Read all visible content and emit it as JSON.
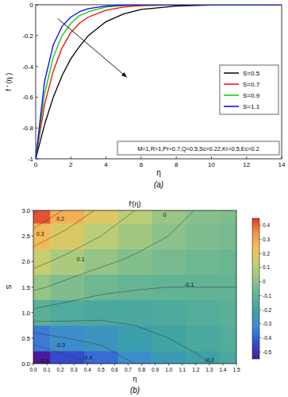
{
  "chart_data": [
    {
      "type": "line",
      "caption": "(a)",
      "xlabel": "η",
      "ylabel": "f ' (η )",
      "annotation": "M=1,R=1,Pr=0.7,Q=0.5,Sc=0.22,Kr=0.5,Ec=0.2",
      "x": [
        0,
        0.5,
        1,
        1.5,
        2,
        2.5,
        3,
        4,
        5,
        6,
        8,
        10,
        12,
        14
      ],
      "series": [
        {
          "name": "S=0.5",
          "color": "#000000",
          "values": [
            -1,
            -0.78,
            -0.6,
            -0.46,
            -0.35,
            -0.27,
            -0.2,
            -0.11,
            -0.06,
            -0.03,
            -0.008,
            -0.002,
            0,
            0
          ]
        },
        {
          "name": "S=0.7",
          "color": "#ff0000",
          "values": [
            -1,
            -0.65,
            -0.43,
            -0.28,
            -0.18,
            -0.12,
            -0.08,
            -0.035,
            -0.015,
            -0.006,
            -0.001,
            0,
            0,
            0
          ]
        },
        {
          "name": "S=0.9",
          "color": "#00cc00",
          "values": [
            -1,
            -0.58,
            -0.34,
            -0.2,
            -0.12,
            -0.07,
            -0.045,
            -0.015,
            -0.005,
            -0.002,
            0,
            0,
            0,
            0
          ]
        },
        {
          "name": "S=1.1",
          "color": "#0000ff",
          "values": [
            -1,
            -0.5,
            -0.26,
            -0.14,
            -0.08,
            -0.045,
            -0.025,
            -0.008,
            -0.003,
            0,
            0,
            0,
            0,
            0
          ]
        }
      ],
      "xlim": [
        0,
        14
      ],
      "ylim": [
        -1,
        0
      ],
      "xticks": [
        0,
        2,
        4,
        6,
        8,
        10,
        12,
        14
      ],
      "yticks": [
        -1,
        -0.8,
        -0.6,
        -0.4,
        -0.2,
        0
      ],
      "legend": "right",
      "grid": false
    },
    {
      "type": "contour",
      "caption": "(b)",
      "title": "f'(η)",
      "xlabel": "η",
      "ylabel": "S",
      "x": [
        0,
        0.25,
        0.5,
        0.75,
        1.0,
        1.25,
        1.5
      ],
      "y": [
        0,
        0.5,
        1.0,
        1.5,
        2.0,
        2.5,
        3.0
      ],
      "cells": [
        [
          -0.55,
          -0.45,
          -0.38,
          -0.3,
          -0.25,
          -0.21,
          -0.17
        ],
        [
          -0.35,
          -0.3,
          -0.27,
          -0.23,
          -0.2,
          -0.17,
          -0.14
        ],
        [
          -0.12,
          -0.15,
          -0.17,
          -0.17,
          -0.16,
          -0.14,
          -0.12
        ],
        [
          0.02,
          -0.03,
          -0.07,
          -0.09,
          -0.1,
          -0.1,
          -0.1
        ],
        [
          0.13,
          0.07,
          0.02,
          -0.02,
          -0.05,
          -0.07,
          -0.08
        ],
        [
          0.25,
          0.17,
          0.1,
          0.05,
          0.0,
          -0.03,
          -0.05
        ],
        [
          0.42,
          0.28,
          0.18,
          0.1,
          0.03,
          -0.01,
          -0.03
        ]
      ],
      "contour_labels": [
        {
          "x": 0.2,
          "y": 2.85,
          "value": 0.2
        },
        {
          "x": 0.05,
          "y": 2.55,
          "value": 0.3
        },
        {
          "x": 0.35,
          "y": 2.05,
          "value": 0.1
        },
        {
          "x": 0.97,
          "y": 2.92,
          "value": 0
        },
        {
          "x": 1.15,
          "y": 1.55,
          "value": -0.1
        },
        {
          "x": 0.2,
          "y": 0.38,
          "value": -0.3
        },
        {
          "x": 0.4,
          "y": 0.12,
          "value": -0.4
        },
        {
          "x": 0.08,
          "y": 0.06,
          "value": -0.5
        },
        {
          "x": 1.3,
          "y": 0.07,
          "value": -0.2
        }
      ],
      "xlim": [
        0,
        1.5
      ],
      "ylim": [
        0,
        3.0
      ],
      "xticks": [
        {
          "value": 0,
          "label": "0.0"
        },
        {
          "value": 0.1,
          "label": "0.1"
        },
        {
          "value": 0.2,
          "label": "0.2"
        },
        {
          "value": 0.3,
          "label": "0.3"
        },
        {
          "value": 0.4,
          "label": "0.4"
        },
        {
          "value": 0.5,
          "label": "0.5"
        },
        {
          "value": 0.6,
          "label": "0.6"
        },
        {
          "value": 0.7,
          "label": "0.7"
        },
        {
          "value": 0.8,
          "label": "0.8"
        },
        {
          "value": 0.9,
          "label": "0.9"
        },
        {
          "value": 1.0,
          "label": "1.0"
        },
        {
          "value": 1.1,
          "label": "1.1"
        },
        {
          "value": 1.2,
          "label": "1.2"
        },
        {
          "value": 1.3,
          "label": "1.3"
        },
        {
          "value": 1.4,
          "label": "1.4"
        },
        {
          "value": 1.5,
          "label": "1.5"
        }
      ],
      "yticks": [
        {
          "value": 0,
          "label": "0.0"
        },
        {
          "value": 0.5,
          "label": "0.5"
        },
        {
          "value": 1.0,
          "label": "1.0"
        },
        {
          "value": 1.5,
          "label": "1.5"
        },
        {
          "value": 2.0,
          "label": "2.0"
        },
        {
          "value": 2.5,
          "label": "2.5"
        },
        {
          "value": 3.0,
          "label": "3.0"
        }
      ],
      "colorbar_lim": [
        -0.55,
        0.45
      ],
      "colorbar_ticks": [
        -0.5,
        -0.4,
        -0.3,
        -0.2,
        -0.1,
        0,
        0.1,
        0.2,
        0.3,
        0.4
      ]
    }
  ]
}
